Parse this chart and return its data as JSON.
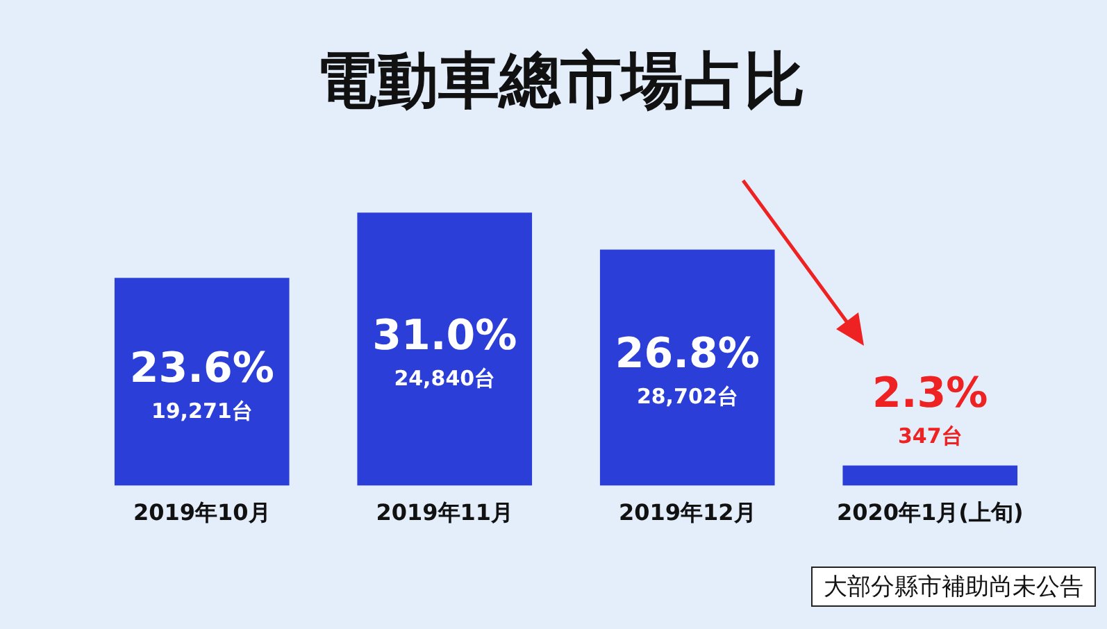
{
  "chart_data": {
    "type": "bar",
    "title": "電動車總市場占比",
    "categories": [
      "2019年10月",
      "2019年11月",
      "2019年12月",
      "2020年1月(上旬)"
    ],
    "values": [
      23.6,
      31.0,
      26.8,
      2.3
    ],
    "colors": [
      "#2b3fd8",
      "#2b3fd8",
      "#2b3fd8",
      "#2b3fd8"
    ],
    "value_labels": [
      "23.6%\n19,271台",
      "31.0%\n24,840台",
      "26.8%\n28,702台",
      "2.3%\n347台"
    ],
    "annotations": [
      "大部分縣市補助尚未公告"
    ]
  }
}
